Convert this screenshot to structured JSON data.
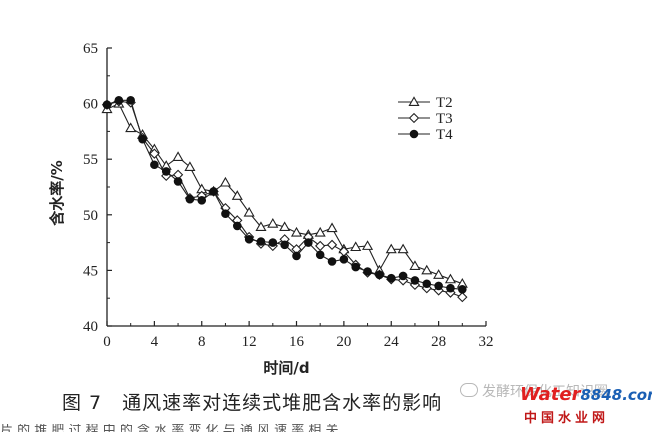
{
  "caption": "图 7　通风速率对连续式堆肥含水率的影响",
  "watermark": {
    "wechat": "发酵环保化工知识圈",
    "logo_main": "Water",
    "logo_num": "8848",
    "logo_suffix": ".com",
    "site_cn": "中国水业网",
    "brand_red": "#e02020",
    "brand_blue": "#1a5fb4"
  },
  "footer_fragment": "片 的 堆 肥 过 程 中 的 含 水 率 变 化 与 通 风 速 率 相 关",
  "chart_data": {
    "type": "line",
    "xlabel": "时间/d",
    "ylabel": "含水率/%",
    "xlim": [
      0,
      32
    ],
    "ylim": [
      40,
      65
    ],
    "xticks": [
      0,
      4,
      8,
      12,
      16,
      20,
      24,
      28,
      32
    ],
    "yticks": [
      40,
      45,
      50,
      55,
      60,
      65
    ],
    "grid": false,
    "legend_position": "top-right",
    "series": [
      {
        "name": "T2",
        "marker": "triangle",
        "x": [
          0,
          1,
          2,
          3,
          4,
          5,
          6,
          7,
          8,
          9,
          10,
          11,
          12,
          13,
          14,
          15,
          16,
          17,
          18,
          19,
          20,
          21,
          22,
          23,
          24,
          25,
          26,
          27,
          28,
          29,
          30
        ],
        "values": [
          59.5,
          60.0,
          57.8,
          57.2,
          55.9,
          54.4,
          55.2,
          54.3,
          52.3,
          52.1,
          52.9,
          51.7,
          50.2,
          48.9,
          49.2,
          48.9,
          48.4,
          48.2,
          48.4,
          48.8,
          46.9,
          47.1,
          47.2,
          45.0,
          46.9,
          46.9,
          45.4,
          45.0,
          44.6,
          44.2,
          43.8
        ]
      },
      {
        "name": "T3",
        "marker": "diamond",
        "x": [
          0,
          1,
          2,
          3,
          4,
          5,
          6,
          7,
          8,
          9,
          10,
          11,
          12,
          13,
          14,
          15,
          16,
          17,
          18,
          19,
          20,
          21,
          22,
          23,
          24,
          25,
          26,
          27,
          28,
          29,
          30
        ],
        "values": [
          59.9,
          60.2,
          60.1,
          56.9,
          55.5,
          53.5,
          53.6,
          51.5,
          51.7,
          52.1,
          50.6,
          49.5,
          48.0,
          47.4,
          47.2,
          47.8,
          46.9,
          48.0,
          47.2,
          47.3,
          46.7,
          45.5,
          44.8,
          44.6,
          44.2,
          44.1,
          43.7,
          43.4,
          43.2,
          43.0,
          42.6
        ]
      },
      {
        "name": "T4",
        "marker": "circle",
        "x": [
          0,
          1,
          2,
          3,
          4,
          5,
          6,
          7,
          8,
          9,
          10,
          11,
          12,
          13,
          14,
          15,
          16,
          17,
          18,
          19,
          20,
          21,
          22,
          23,
          24,
          25,
          26,
          27,
          28,
          29,
          30
        ],
        "values": [
          59.9,
          60.3,
          60.3,
          56.8,
          54.5,
          53.9,
          53.0,
          51.4,
          51.3,
          52.1,
          50.1,
          49.0,
          47.8,
          47.6,
          47.5,
          47.3,
          46.3,
          47.5,
          46.4,
          45.8,
          46.0,
          45.3,
          44.9,
          44.6,
          44.3,
          44.5,
          44.1,
          43.8,
          43.6,
          43.4,
          43.3
        ]
      }
    ]
  }
}
